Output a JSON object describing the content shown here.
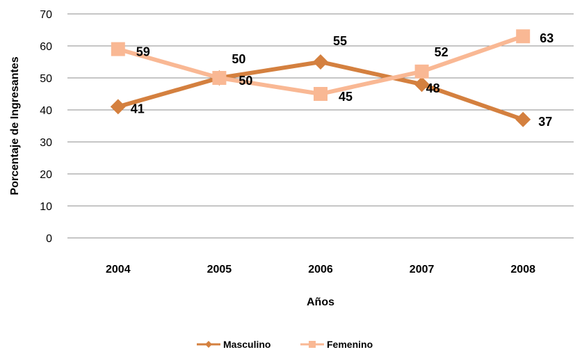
{
  "chart_data": {
    "type": "line",
    "categories": [
      "2004",
      "2005",
      "2006",
      "2007",
      "2008"
    ],
    "series": [
      {
        "name": "Masculino",
        "values": [
          41,
          50,
          55,
          48,
          37
        ],
        "color": "#D4803F",
        "marker": "diamond"
      },
      {
        "name": "Femenino",
        "values": [
          59,
          50,
          45,
          52,
          63
        ],
        "color": "#F9B894",
        "marker": "square"
      }
    ],
    "xlabel": "Años",
    "ylabel": "Porcentaje de Ingresantes",
    "ylim": [
      0,
      70
    ],
    "yticks": [
      0,
      10,
      20,
      30,
      40,
      50,
      60,
      70
    ],
    "grid": true,
    "legend_position": "bottom"
  }
}
